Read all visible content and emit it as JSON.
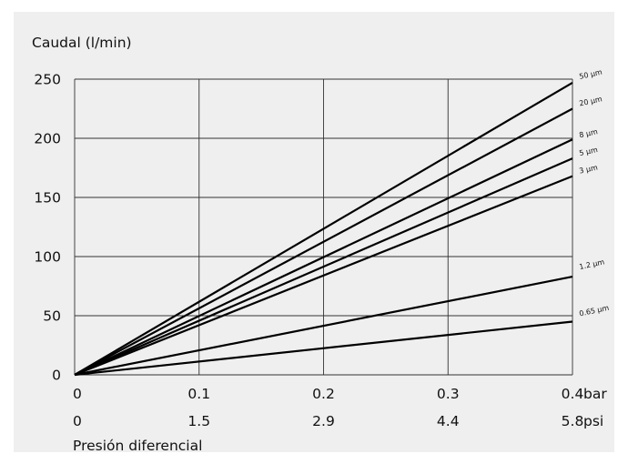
{
  "chart_data": {
    "type": "line",
    "ylabel": "Caudal (l/min)",
    "xlabel": "Presión diferencial",
    "ylim": [
      0,
      250
    ],
    "yticks": [
      "0",
      "50",
      "100",
      "150",
      "200",
      "250"
    ],
    "xlim": [
      0,
      0.4
    ],
    "x_ticks_bar": [
      "0",
      "0.1",
      "0.2",
      "0.3",
      "0.4"
    ],
    "x_ticks_psi": [
      "0",
      "1.5",
      "2.9",
      "4.4",
      "5.8"
    ],
    "x_unit_bar": "bar",
    "x_unit_psi": "psi",
    "grid": true,
    "series": [
      {
        "name": "50 µm",
        "x": [
          0,
          0.4
        ],
        "y": [
          0,
          247
        ]
      },
      {
        "name": "20 µm",
        "x": [
          0,
          0.4
        ],
        "y": [
          0,
          225
        ]
      },
      {
        "name": "8 µm",
        "x": [
          0,
          0.4
        ],
        "y": [
          0,
          199
        ]
      },
      {
        "name": "5 µm",
        "x": [
          0,
          0.4
        ],
        "y": [
          0,
          183
        ]
      },
      {
        "name": "3 µm",
        "x": [
          0,
          0.4
        ],
        "y": [
          0,
          168
        ]
      },
      {
        "name": "1.2 µm",
        "x": [
          0,
          0.4
        ],
        "y": [
          0,
          83
        ]
      },
      {
        "name": "0.65 µm",
        "x": [
          0,
          0.4
        ],
        "y": [
          0,
          45
        ]
      }
    ]
  }
}
